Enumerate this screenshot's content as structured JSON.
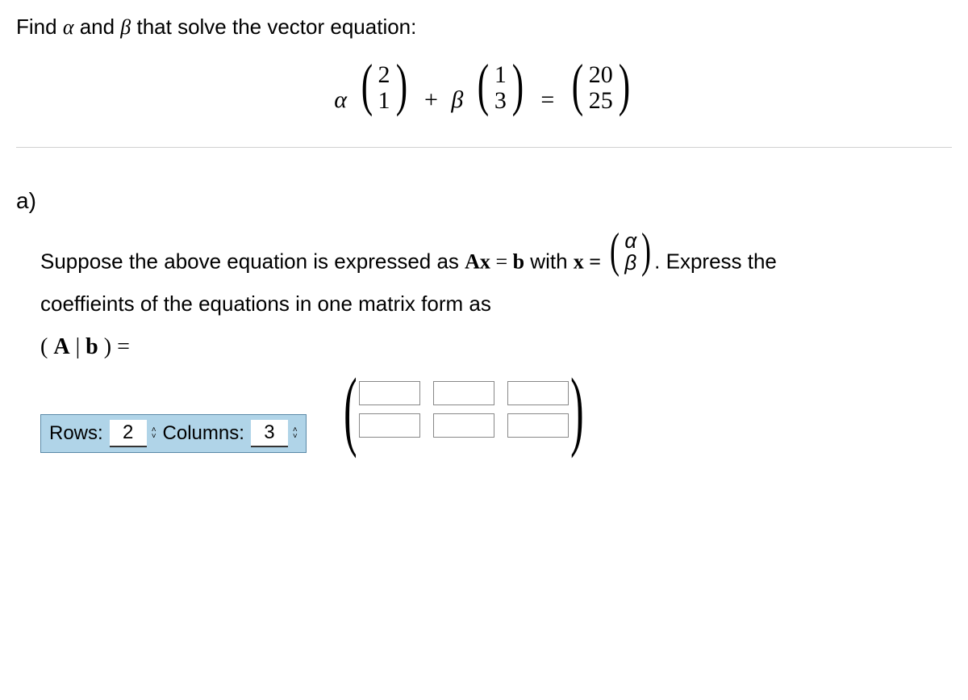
{
  "prompt": {
    "pre": "Find ",
    "alpha": "α",
    "mid": " and ",
    "beta": "β",
    "post": " that solve the vector equation:"
  },
  "equation": {
    "alpha": "α",
    "v1_top": "2",
    "v1_bot": "1",
    "plus": "+",
    "beta": "β",
    "v2_top": "1",
    "v2_bot": "3",
    "eq": "=",
    "r_top": "20",
    "r_bot": "25"
  },
  "part_label": "a)",
  "body": {
    "line1_pre": "Suppose the above equation is expressed as ",
    "Ax": "Ax",
    "eq1": " = ",
    "b": "b",
    "with": " with ",
    "xeq": "x =",
    "xv_top": "α",
    "xv_bot": "β",
    "line1_post": ". Express the",
    "line2": "coeffieints  of the equations in one matrix form as",
    "Ab_open": "(",
    "Ab_A": "A",
    "Ab_bar": "|",
    "Ab_b": "b",
    "Ab_close": ")",
    "Ab_eq": "="
  },
  "controls": {
    "rows_label": "Rows:",
    "rows_value": "2",
    "cols_label": "Columns:",
    "cols_value": "3"
  },
  "matrix": {
    "rows": 2,
    "cols": 3
  },
  "colors": {
    "control_bg": "#b0d4e8",
    "control_border": "#5a8aa8",
    "divider": "#d0d0d0"
  }
}
